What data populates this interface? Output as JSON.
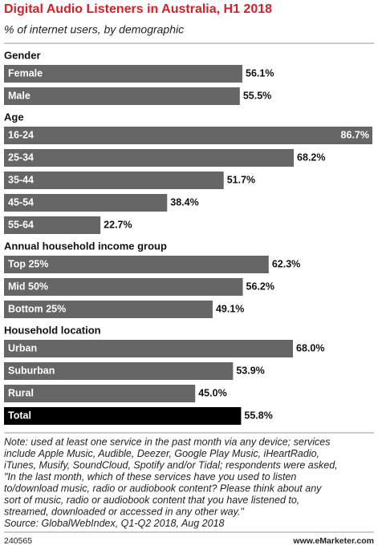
{
  "chart_data": {
    "type": "bar",
    "title": "Digital Audio Listeners in Australia, H1 2018",
    "subtitle": "% of internet users, by demographic",
    "color": "#666666",
    "groups": [
      {
        "name": "Gender",
        "categories": [
          "Female",
          "Male"
        ],
        "values": [
          56.1,
          55.5
        ],
        "value_labels": [
          "56.1%",
          "55.5%"
        ]
      },
      {
        "name": "Age",
        "categories": [
          "16-24",
          "25-34",
          "35-44",
          "45-54",
          "55-64"
        ],
        "values": [
          86.7,
          68.2,
          51.7,
          38.4,
          22.7
        ],
        "value_labels": [
          "86.7%",
          "68.2%",
          "51.7%",
          "38.4%",
          "22.7%"
        ]
      },
      {
        "name": "Annual household income group",
        "categories": [
          "Top 25%",
          "Mid 50%",
          "Bottom 25%"
        ],
        "values": [
          62.3,
          56.2,
          49.1
        ],
        "value_labels": [
          "62.3%",
          "56.2%",
          "49.1%"
        ]
      },
      {
        "name": "Household location",
        "categories": [
          "Urban",
          "Suburban",
          "Rural"
        ],
        "values": [
          68.0,
          53.9,
          45.0
        ],
        "value_labels": [
          "68.0%",
          "53.9%",
          "45.0%"
        ]
      }
    ],
    "total": {
      "category": "Total",
      "value": 55.8,
      "value_label": "55.8%",
      "color": "#000000"
    },
    "note": [
      "Note: used at least one service in the past month via any device; services",
      "include Apple Music, Audible, Deezer, Google Play Music, iHeartRadio,",
      "iTunes, Musify, SoundCloud, Spotify and/or Tidal; respondents were asked,",
      "\"In the last month, which of these services have you used to listen",
      "to/download music, radio or audiobook content? Please think about any",
      "sort of music, radio or audiobook content that you have listened to,",
      "streamed, downloaded or accessed in any other way.\""
    ],
    "source": "Source: GlobalWebIndex, Q1-Q2 2018, Aug 2018",
    "chart_id": "240565",
    "brand": "www.eMarketer.com"
  }
}
